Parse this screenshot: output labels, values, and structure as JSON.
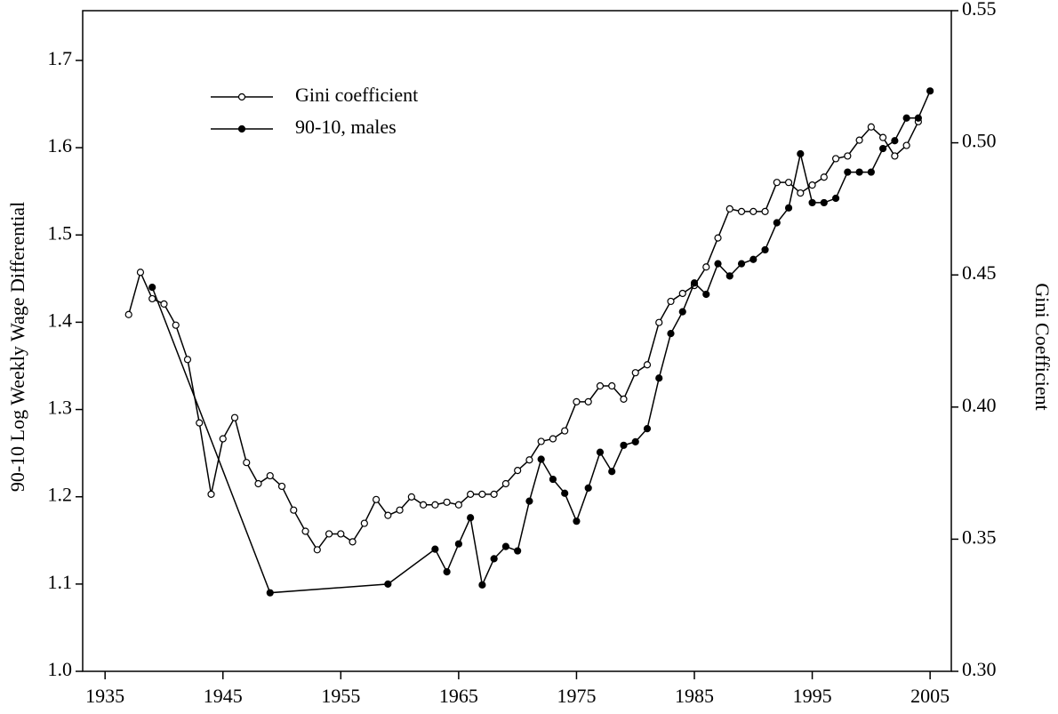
{
  "chart_data": {
    "type": "line",
    "y_label": "90-10 Log Weekly Wage Differential",
    "y2_label": "Gini Coefficient",
    "xlim": [
      1933.1,
      2006.8
    ],
    "xticks": [
      1935,
      1945,
      1955,
      1965,
      1975,
      1985,
      1995,
      2005
    ],
    "ylim": [
      1.0,
      1.757
    ],
    "yticks": [
      {
        "value": 1.0,
        "label": "1.0"
      },
      {
        "value": 1.1,
        "label": "1.1"
      },
      {
        "value": 1.2,
        "label": "1.2"
      },
      {
        "value": 1.3,
        "label": "1.3"
      },
      {
        "value": 1.4,
        "label": "1.4"
      },
      {
        "value": 1.5,
        "label": "1.5"
      },
      {
        "value": 1.6,
        "label": "1.6"
      },
      {
        "value": 1.7,
        "label": "1.7"
      }
    ],
    "y2lim": [
      0.3,
      0.55
    ],
    "y2ticks": [
      {
        "value": 0.3,
        "label": "0.30"
      },
      {
        "value": 0.35,
        "label": "0.35"
      },
      {
        "value": 0.4,
        "label": "0.40"
      },
      {
        "value": 0.45,
        "label": "0.45"
      },
      {
        "value": 0.5,
        "label": "0.50"
      },
      {
        "value": 0.55,
        "label": "0.55"
      }
    ],
    "legend": "upper left",
    "series": [
      {
        "name": "Gini coefficient",
        "color": "#000000",
        "marker": "open",
        "axis": "y2",
        "x": [
          1937,
          1938,
          1939,
          1940,
          1941,
          1942,
          1943,
          1944,
          1945,
          1946,
          1947,
          1948,
          1949,
          1950,
          1951,
          1952,
          1953,
          1954,
          1955,
          1956,
          1957,
          1958,
          1959,
          1960,
          1961,
          1962,
          1963,
          1964,
          1965,
          1966,
          1967,
          1968,
          1969,
          1970,
          1971,
          1972,
          1973,
          1974,
          1975,
          1976,
          1977,
          1978,
          1979,
          1980,
          1981,
          1982,
          1983,
          1984,
          1985,
          1986,
          1987,
          1988,
          1989,
          1990,
          1991,
          1992,
          1993,
          1994,
          1995,
          1996,
          1997,
          1998,
          1999,
          2000,
          2001,
          2002,
          2003,
          2004
        ],
        "values": [
          0.435,
          0.451,
          0.441,
          0.439,
          0.431,
          0.418,
          0.394,
          0.367,
          0.388,
          0.396,
          0.379,
          0.371,
          0.374,
          0.37,
          0.361,
          0.353,
          0.346,
          0.352,
          0.352,
          0.349,
          0.356,
          0.365,
          0.359,
          0.361,
          0.366,
          0.363,
          0.363,
          0.364,
          0.363,
          0.367,
          0.367,
          0.367,
          0.371,
          0.376,
          0.38,
          0.387,
          0.388,
          0.391,
          0.402,
          0.402,
          0.408,
          0.408,
          0.403,
          0.413,
          0.416,
          0.432,
          0.44,
          0.443,
          0.446,
          0.453,
          0.464,
          0.475,
          0.474,
          0.474,
          0.474,
          0.485,
          0.485,
          0.481,
          0.484,
          0.487,
          0.494,
          0.495,
          0.501,
          0.506,
          0.502,
          0.495,
          0.499,
          0.508
        ]
      },
      {
        "name": "90-10, males",
        "color": "#000000",
        "marker": "filled",
        "x": [
          1939,
          1949,
          1959,
          1963,
          1964,
          1965,
          1966,
          1967,
          1968,
          1969,
          1970,
          1971,
          1972,
          1973,
          1974,
          1975,
          1976,
          1977,
          1978,
          1979,
          1980,
          1981,
          1982,
          1983,
          1984,
          1985,
          1986,
          1987,
          1988,
          1989,
          1990,
          1991,
          1992,
          1993,
          1994,
          1995,
          1996,
          1997,
          1998,
          1999,
          2000,
          2001,
          2002,
          2003,
          2004,
          2005
        ],
        "values": [
          1.44,
          1.09,
          1.1,
          1.14,
          1.114,
          1.146,
          1.176,
          1.099,
          1.129,
          1.143,
          1.138,
          1.195,
          1.243,
          1.22,
          1.204,
          1.172,
          1.21,
          1.251,
          1.229,
          1.259,
          1.263,
          1.278,
          1.336,
          1.387,
          1.412,
          1.445,
          1.432,
          1.467,
          1.453,
          1.467,
          1.472,
          1.483,
          1.514,
          1.531,
          1.593,
          1.537,
          1.537,
          1.542,
          1.572,
          1.572,
          1.572,
          1.599,
          1.608,
          1.634,
          1.634,
          1.665
        ]
      }
    ]
  }
}
